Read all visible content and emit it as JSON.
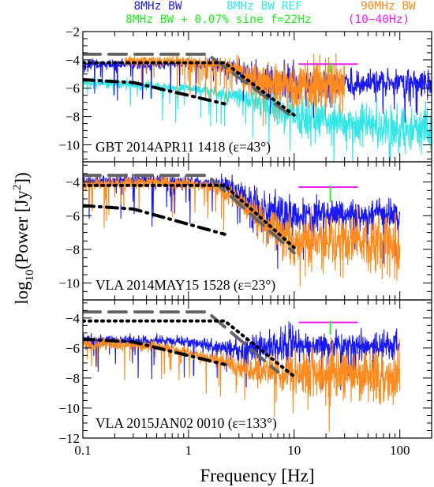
{
  "legend": {
    "row1": [
      {
        "text": "8MHz BW",
        "color": "#1a1aee"
      },
      {
        "text": "8MHz BW REF",
        "color": "#33e6e6"
      },
      {
        "text": "90MHz BW",
        "color": "#ff8a1e"
      }
    ],
    "row2": [
      {
        "text": "8MHz BW + 0.07% sine f=22Hz",
        "color": "#22ee22"
      },
      {
        "text": "(10−40Hz)",
        "color": "#ee22ee"
      }
    ]
  },
  "axes": {
    "xlabel": "Frequency [Hz]",
    "ylabel_prefix": "log",
    "ylabel_sub": "10",
    "ylabel_mid": "(Power [Jy",
    "ylabel_sup": "2",
    "ylabel_suffix": "])"
  },
  "chart_data": {
    "type": "line",
    "x_scale": "log",
    "xlim": [
      0.1,
      200
    ],
    "x_ticks": [
      {
        "v": 0.1,
        "label": "0.1"
      },
      {
        "v": 1,
        "label": "1"
      },
      {
        "v": 10,
        "label": "10"
      },
      {
        "v": 100,
        "label": "100"
      }
    ],
    "panels": [
      {
        "label": "GBT 2014APR11 1418 (ε=43°)",
        "ylim": [
          -11.2,
          -2
        ],
        "y_ticks": [
          {
            "v": -2,
            "label": "−2"
          },
          {
            "v": -4,
            "label": "−4"
          },
          {
            "v": -6,
            "label": "−6"
          },
          {
            "v": -8,
            "label": "−8"
          },
          {
            "v": -10,
            "label": "−10"
          }
        ],
        "series": [
          {
            "color": "#33e6e6",
            "x": [
              0.1,
              0.2,
              0.5,
              1,
              2,
              5,
              10,
              20,
              50,
              100,
              200
            ],
            "y": [
              -5.6,
              -5.7,
              -5.9,
              -6.0,
              -6.3,
              -7.0,
              -7.8,
              -8.4,
              -8.7,
              -8.9,
              -9.0
            ]
          },
          {
            "color": "#1a1aee",
            "x": [
              0.1,
              0.5,
              1,
              2,
              3,
              5,
              10,
              20,
              50,
              100,
              200
            ],
            "y": [
              -4.3,
              -4.3,
              -4.3,
              -4.4,
              -4.7,
              -5.4,
              -5.7,
              -5.6,
              -5.6,
              -5.6,
              -5.6
            ]
          },
          {
            "color": "#ff8a1e",
            "x": [
              0.25,
              0.5,
              1,
              2,
              3,
              5,
              10,
              20,
              30
            ],
            "y": [
              -4.1,
              -4.1,
              -4.1,
              -4.3,
              -4.7,
              -5.5,
              -5.8,
              -5.7,
              -5.7
            ]
          }
        ],
        "models": [
          {
            "style": "dash",
            "x": [
              0.1,
              1.5,
              10
            ],
            "y": [
              -3.6,
              -3.6,
              -8.1
            ]
          },
          {
            "style": "dot",
            "x": [
              0.1,
              2.2,
              10
            ],
            "y": [
              -4.2,
              -4.2,
              -7.9
            ]
          },
          {
            "style": "dashdot",
            "x": [
              0.1,
              0.3,
              2.2
            ],
            "y": [
              -5.4,
              -5.6,
              -7.1
            ]
          }
        ],
        "magenta": {
          "x": [
            11,
            40
          ],
          "y": -4.3
        },
        "green": {
          "x": 22,
          "y": [
            -4.2,
            -4.9
          ]
        }
      },
      {
        "label": "VLA 2014MAY15 1528 (ε=23°)",
        "ylim": [
          -11,
          -2.8
        ],
        "y_ticks": [
          {
            "v": -4,
            "label": "−4"
          },
          {
            "v": -6,
            "label": "−6"
          },
          {
            "v": -8,
            "label": "−8"
          },
          {
            "v": -10,
            "label": "−10"
          }
        ],
        "series": [
          {
            "color": "#1a1aee",
            "x": [
              0.1,
              0.5,
              1,
              2,
              3,
              5,
              10,
              20,
              50,
              100
            ],
            "y": [
              -3.9,
              -3.9,
              -4.0,
              -4.1,
              -4.6,
              -5.6,
              -6.0,
              -5.9,
              -5.9,
              -5.9
            ]
          },
          {
            "color": "#ff8a1e",
            "x": [
              0.1,
              0.5,
              1,
              2,
              3,
              5,
              10,
              20,
              50,
              100
            ],
            "y": [
              -4.1,
              -4.0,
              -4.1,
              -4.4,
              -5.1,
              -6.3,
              -7.6,
              -7.6,
              -7.6,
              -7.6
            ]
          }
        ],
        "models": [
          {
            "style": "dash",
            "x": [
              0.1,
              1.5,
              10
            ],
            "y": [
              -3.6,
              -3.6,
              -8.2
            ]
          },
          {
            "style": "dot",
            "x": [
              0.1,
              2.2,
              10
            ],
            "y": [
              -4.2,
              -4.2,
              -7.9
            ]
          },
          {
            "style": "dashdot",
            "x": [
              0.1,
              0.3,
              2.2
            ],
            "y": [
              -5.4,
              -5.6,
              -7.1
            ]
          }
        ],
        "magenta": {
          "x": [
            11,
            40
          ],
          "y": -4.3
        },
        "green": {
          "x": 22,
          "y": [
            -4.2,
            -5.2
          ]
        }
      },
      {
        "label": "VLA 2015JAN02 0010 (ε=133°)",
        "ylim": [
          -12,
          -2.8
        ],
        "y_ticks": [
          {
            "v": -4,
            "label": "−4"
          },
          {
            "v": -6,
            "label": "−6"
          },
          {
            "v": -8,
            "label": "−8"
          },
          {
            "v": -10,
            "label": "−10"
          },
          {
            "v": -12,
            "label": "−12"
          }
        ],
        "series": [
          {
            "color": "#1a1aee",
            "x": [
              0.1,
              0.5,
              1,
              2,
              3,
              5,
              10,
              20,
              50,
              100
            ],
            "y": [
              -5.5,
              -5.5,
              -5.6,
              -5.9,
              -6.1,
              -6.0,
              -5.8,
              -5.8,
              -5.8,
              -5.8
            ]
          },
          {
            "color": "#ff8a1e",
            "x": [
              0.1,
              0.5,
              1,
              2,
              3,
              5,
              10,
              20,
              50,
              100
            ],
            "y": [
              -5.7,
              -5.9,
              -6.3,
              -6.9,
              -7.3,
              -7.6,
              -7.7,
              -7.7,
              -7.8,
              -7.8
            ]
          }
        ],
        "models": [
          {
            "style": "dash",
            "x": [
              0.1,
              1.5,
              7
            ],
            "y": [
              -3.6,
              -3.6,
              -7.6
            ]
          },
          {
            "style": "dot",
            "x": [
              0.1,
              2.2,
              10
            ],
            "y": [
              -4.2,
              -4.2,
              -7.9
            ]
          },
          {
            "style": "dashdot",
            "x": [
              0.1,
              0.3,
              2.2
            ],
            "y": [
              -5.4,
              -5.6,
              -7.1
            ]
          }
        ],
        "magenta": {
          "x": [
            11,
            40
          ],
          "y": -4.3
        },
        "green": {
          "x": 22,
          "y": [
            -4.2,
            -5.1
          ]
        }
      }
    ]
  }
}
